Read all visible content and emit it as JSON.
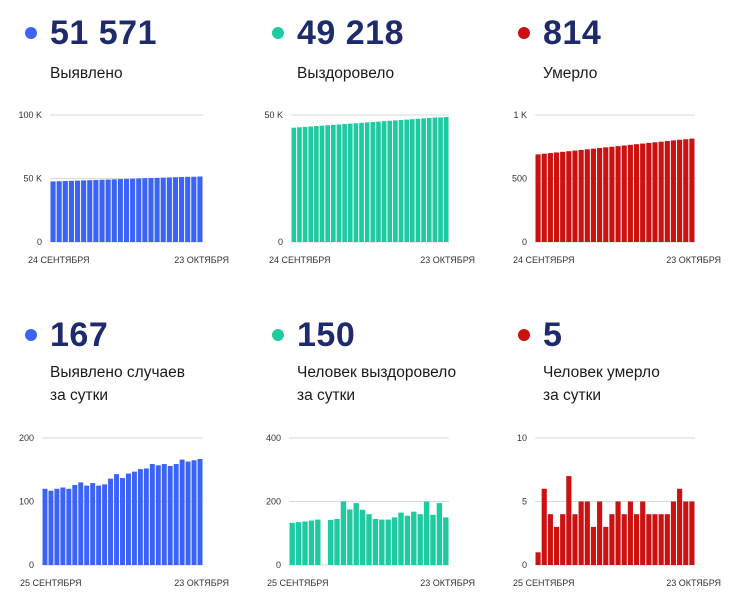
{
  "panels": [
    {
      "value": "51 571",
      "label": [
        "Выявлено"
      ]
    },
    {
      "value": "49 218",
      "label": [
        "Выздоровело"
      ]
    },
    {
      "value": "814",
      "label": [
        "Умерло"
      ]
    },
    {
      "value": "167",
      "label": [
        "Выявлено случаев",
        "за сутки"
      ]
    },
    {
      "value": "150",
      "label": [
        "Человек выздоровело",
        "за сутки"
      ]
    },
    {
      "value": "5",
      "label": [
        "Человек умерло",
        "за сутки"
      ]
    }
  ],
  "colors": {
    "blue": "#3b64f6",
    "green": "#1ecba0",
    "red": "#cc1111",
    "value_text": "#1d2a6b"
  },
  "chart_data": [
    {
      "type": "bar",
      "color": "blue",
      "x_start_label": "24 СЕНТЯБРЯ",
      "x_end_label": "23 ОКТЯБРЯ",
      "y_ticks": [
        {
          "v": 0,
          "label": "0"
        },
        {
          "v": 50000,
          "label": "50 K"
        },
        {
          "v": 100000,
          "label": "100 K"
        }
      ],
      "ylim": [
        0,
        100000
      ],
      "values": [
        47690,
        47856,
        48022,
        48188,
        48354,
        48520,
        48686,
        48852,
        49018,
        49184,
        49350,
        49516,
        49682,
        49848,
        50014,
        50180,
        50346,
        50512,
        50678,
        50844,
        51010,
        51176,
        51342,
        51404,
        51571
      ]
    },
    {
      "type": "bar",
      "color": "green",
      "x_start_label": "24 СЕНТЯБРЯ",
      "x_end_label": "23 ОКТЯБРЯ",
      "y_ticks": [
        {
          "v": 0,
          "label": "0"
        },
        {
          "v": 50000,
          "label": "50 K"
        }
      ],
      "ylim": [
        0,
        50000
      ],
      "values": [
        45000,
        45160,
        45320,
        45480,
        45640,
        45800,
        45960,
        46120,
        46280,
        46440,
        46600,
        46760,
        46920,
        47080,
        47240,
        47400,
        47560,
        47720,
        47880,
        48040,
        48200,
        48360,
        48520,
        48680,
        48840,
        49000,
        49068,
        49218
      ]
    },
    {
      "type": "bar",
      "color": "red",
      "x_start_label": "24 СЕНТЯБРЯ",
      "x_end_label": "23 ОКТЯБРЯ",
      "y_ticks": [
        {
          "v": 0,
          "label": "0"
        },
        {
          "v": 500,
          "label": "500"
        },
        {
          "v": 1000,
          "label": "1 K"
        }
      ],
      "ylim": [
        0,
        1000
      ],
      "values": [
        690,
        695,
        700,
        705,
        710,
        715,
        720,
        725,
        730,
        735,
        740,
        745,
        750,
        755,
        760,
        765,
        770,
        775,
        780,
        785,
        790,
        795,
        800,
        805,
        809,
        814
      ]
    },
    {
      "type": "bar",
      "color": "blue",
      "x_start_label": "25 СЕНТЯБРЯ",
      "x_end_label": "23 ОКТЯБРЯ",
      "y_ticks": [
        {
          "v": 0,
          "label": "0"
        },
        {
          "v": 100,
          "label": "100"
        },
        {
          "v": 200,
          "label": "200"
        }
      ],
      "ylim": [
        0,
        200
      ],
      "values": [
        120,
        117,
        120,
        122,
        120,
        126,
        130,
        125,
        129,
        125,
        127,
        136,
        143,
        137,
        144,
        147,
        151,
        152,
        159,
        157,
        159,
        156,
        159,
        166,
        163,
        165,
        167
      ]
    },
    {
      "type": "bar",
      "color": "green",
      "x_start_label": "25 СЕНТЯБРЯ",
      "x_end_label": "23 ОКТЯБРЯ",
      "y_ticks": [
        {
          "v": 0,
          "label": "0"
        },
        {
          "v": 200,
          "label": "200"
        },
        {
          "v": 400,
          "label": "400"
        }
      ],
      "ylim": [
        0,
        400
      ],
      "values": [
        133,
        135,
        137,
        140,
        143,
        null,
        142,
        145,
        200,
        175,
        195,
        174,
        160,
        145,
        143,
        143,
        150,
        165,
        155,
        168,
        160,
        200,
        158,
        195,
        150
      ]
    },
    {
      "type": "bar",
      "color": "red",
      "x_start_label": "25 СЕНТЯБРЯ",
      "x_end_label": "23 ОКТЯБРЯ",
      "y_ticks": [
        {
          "v": 0,
          "label": "0"
        },
        {
          "v": 5,
          "label": "5"
        },
        {
          "v": 10,
          "label": "10"
        }
      ],
      "ylim": [
        0,
        10
      ],
      "values": [
        1,
        6,
        4,
        3,
        4,
        7,
        4,
        5,
        5,
        3,
        5,
        3,
        4,
        5,
        4,
        5,
        4,
        5,
        4,
        4,
        4,
        4,
        5,
        6,
        5,
        5
      ]
    }
  ]
}
